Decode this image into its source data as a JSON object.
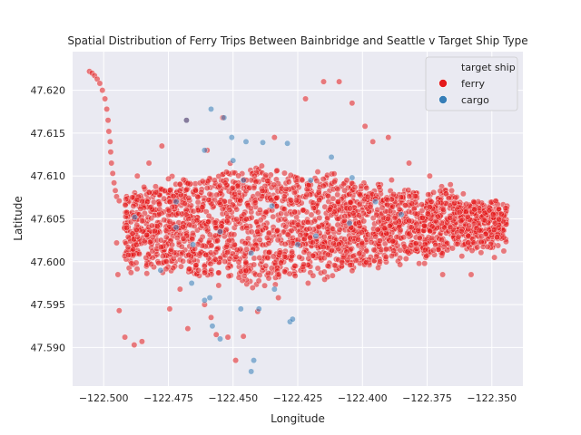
{
  "chart_data": {
    "type": "scatter",
    "title": "Spatial Distribution of Ferry Trips Between Bainbridge and Seattle v Target Ship Type",
    "xlabel": "Longitude",
    "ylabel": "Latitude",
    "xlim": [
      -122.512,
      -122.338
    ],
    "ylim": [
      47.5855,
      47.6245
    ],
    "xticks": [
      -122.5,
      -122.475,
      -122.45,
      -122.425,
      -122.4,
      -122.375,
      -122.35
    ],
    "xtick_labels": [
      "−122.500",
      "−122.475",
      "−122.450",
      "−122.425",
      "−122.400",
      "−122.375",
      "−122.350"
    ],
    "yticks": [
      47.59,
      47.595,
      47.6,
      47.605,
      47.61,
      47.615,
      47.62
    ],
    "ytick_labels": [
      "47.590",
      "47.595",
      "47.600",
      "47.605",
      "47.610",
      "47.615",
      "47.620"
    ],
    "grid": true,
    "legend": {
      "title": "target ship",
      "placement": "top-right",
      "entries": [
        {
          "name": "ferry",
          "color": "#e41a1c"
        },
        {
          "name": "cargo",
          "color": "#377eb8"
        }
      ]
    },
    "background_color": "#eaeaf2",
    "series": [
      {
        "name": "ferry",
        "color": "#e41a1c",
        "points": [
          [
            -122.5055,
            47.6222
          ],
          [
            -122.5045,
            47.622
          ],
          [
            -122.5035,
            47.6217
          ],
          [
            -122.5025,
            47.6213
          ],
          [
            -122.5015,
            47.6208
          ],
          [
            -122.5005,
            47.62
          ],
          [
            -122.4995,
            47.619
          ],
          [
            -122.4988,
            47.6178
          ],
          [
            -122.4983,
            47.6165
          ],
          [
            -122.498,
            47.6152
          ],
          [
            -122.4975,
            47.614
          ],
          [
            -122.4973,
            47.6128
          ],
          [
            -122.497,
            47.6115
          ],
          [
            -122.4965,
            47.6103
          ],
          [
            -122.496,
            47.6092
          ],
          [
            -122.4955,
            47.6083
          ],
          [
            -122.495,
            47.6076
          ],
          [
            -122.494,
            47.6071
          ],
          [
            -122.495,
            47.6022
          ],
          [
            -122.4945,
            47.5985
          ],
          [
            -122.494,
            47.5943
          ],
          [
            -122.4918,
            47.5912
          ],
          [
            -122.4882,
            47.5903
          ],
          [
            -122.4852,
            47.5907
          ],
          [
            -122.4745,
            47.5945
          ],
          [
            -122.4705,
            47.5968
          ],
          [
            -122.4675,
            47.5922
          ],
          [
            -122.461,
            47.595
          ],
          [
            -122.4585,
            47.5935
          ],
          [
            -122.4565,
            47.5915
          ],
          [
            -122.452,
            47.5912
          ],
          [
            -122.449,
            47.5885
          ],
          [
            -122.446,
            47.5913
          ],
          [
            -122.4405,
            47.5942
          ],
          [
            -122.4325,
            47.5958
          ],
          [
            -122.421,
            47.5975
          ],
          [
            -122.376,
            47.5998
          ],
          [
            -122.369,
            47.5985
          ],
          [
            -122.358,
            47.5985
          ],
          [
            -122.349,
            47.6005
          ],
          [
            -122.4825,
            47.6115
          ],
          [
            -122.4775,
            47.6135
          ],
          [
            -122.468,
            47.6165
          ],
          [
            -122.454,
            47.6168
          ],
          [
            -122.434,
            47.6145
          ],
          [
            -122.422,
            47.619
          ],
          [
            -122.415,
            47.621
          ],
          [
            -122.409,
            47.621
          ],
          [
            -122.404,
            47.6185
          ],
          [
            -122.399,
            47.6158
          ],
          [
            -122.396,
            47.614
          ],
          [
            -122.39,
            47.6145
          ],
          [
            -122.382,
            47.6115
          ],
          [
            -122.374,
            47.61
          ],
          [
            -122.366,
            47.609
          ],
          [
            -122.357,
            47.607
          ],
          [
            -122.351,
            47.606
          ],
          [
            -122.487,
            47.61
          ],
          [
            -122.46,
            47.613
          ]
        ],
        "density_regions": [
          {
            "x_min": -122.492,
            "x_max": -122.344,
            "y_center_left": 47.604,
            "y_center_right": 47.6045,
            "height_left": 0.008,
            "height_mid": 0.013,
            "height_right": 0.004,
            "count": 2400
          }
        ]
      },
      {
        "name": "cargo",
        "color": "#377eb8",
        "points": [
          [
            -122.4585,
            47.6178
          ],
          [
            -122.4535,
            47.6168
          ],
          [
            -122.4505,
            47.6145
          ],
          [
            -122.445,
            47.614
          ],
          [
            -122.4385,
            47.6139
          ],
          [
            -122.429,
            47.6138
          ],
          [
            -122.412,
            47.6122
          ],
          [
            -122.404,
            47.6098
          ],
          [
            -122.468,
            47.6165
          ],
          [
            -122.461,
            47.613
          ],
          [
            -122.45,
            47.6118
          ],
          [
            -122.42,
            47.6095
          ],
          [
            -122.488,
            47.6052
          ],
          [
            -122.472,
            47.604
          ],
          [
            -122.4655,
            47.602
          ],
          [
            -122.461,
            47.5955
          ],
          [
            -122.459,
            47.5958
          ],
          [
            -122.458,
            47.5925
          ],
          [
            -122.455,
            47.591
          ],
          [
            -122.447,
            47.5945
          ],
          [
            -122.44,
            47.5945
          ],
          [
            -122.434,
            47.5968
          ],
          [
            -122.428,
            47.593
          ],
          [
            -122.427,
            47.5933
          ],
          [
            -122.443,
            47.5872
          ],
          [
            -122.442,
            47.5885
          ],
          [
            -122.478,
            47.599
          ],
          [
            -122.466,
            47.5975
          ],
          [
            -122.443,
            47.601
          ],
          [
            -122.418,
            47.603
          ],
          [
            -122.395,
            47.607
          ],
          [
            -122.385,
            47.6055
          ],
          [
            -122.446,
            47.6095
          ],
          [
            -122.435,
            47.6065
          ],
          [
            -122.405,
            47.6045
          ],
          [
            -122.472,
            47.607
          ],
          [
            -122.455,
            47.6035
          ],
          [
            -122.425,
            47.602
          ]
        ]
      }
    ]
  }
}
